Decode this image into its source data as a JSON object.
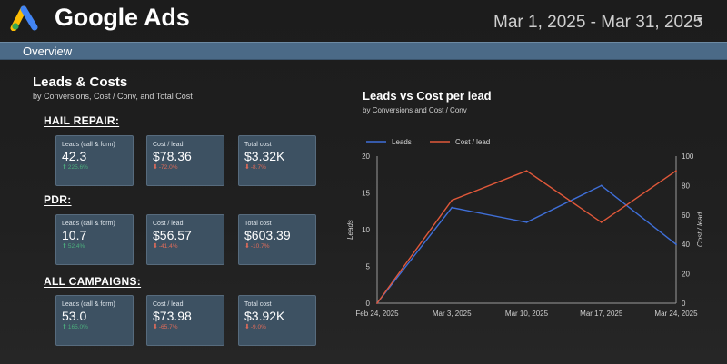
{
  "header": {
    "brand": "Google Ads",
    "date_range": "Mar 1, 2025 - Mar 31, 2025"
  },
  "nav": {
    "overview": "Overview"
  },
  "leads_costs": {
    "title": "Leads & Costs",
    "subtitle": "by Conversions, Cost / Conv, and Total Cost",
    "groups": [
      {
        "name": "HAIL REPAIR:",
        "metrics": [
          {
            "label": "Leads (call & form)",
            "value": "42.3",
            "change": "225.6%",
            "direction": "up"
          },
          {
            "label": "Cost / lead",
            "value": "$78.36",
            "change": "-72.0%",
            "direction": "down"
          },
          {
            "label": "Total cost",
            "value": "$3.32K",
            "change": "-8.7%",
            "direction": "down"
          }
        ]
      },
      {
        "name": "PDR:",
        "metrics": [
          {
            "label": "Leads (call & form)",
            "value": "10.7",
            "change": "52.4%",
            "direction": "up"
          },
          {
            "label": "Cost / lead",
            "value": "$56.57",
            "change": "-41.4%",
            "direction": "down"
          },
          {
            "label": "Total cost",
            "value": "$603.39",
            "change": "-10.7%",
            "direction": "down"
          }
        ]
      },
      {
        "name": "ALL CAMPAIGNS:",
        "metrics": [
          {
            "label": "Leads (call & form)",
            "value": "53.0",
            "change": "165.0%",
            "direction": "up"
          },
          {
            "label": "Cost / lead",
            "value": "$73.98",
            "change": "-65.7%",
            "direction": "down"
          },
          {
            "label": "Total cost",
            "value": "$3.92K",
            "change": "-9.0%",
            "direction": "down"
          }
        ]
      }
    ]
  },
  "colors": {
    "up": "#4caf7d",
    "down": "#e06c5a",
    "leads": "#3f6fd8",
    "cost": "#e0583a",
    "axis": "#9a9a9a"
  },
  "chart_data": {
    "type": "line",
    "title": "Leads vs Cost per lead",
    "subtitle": "by Conversions and Cost / Conv",
    "categories": [
      "Feb 24, 2025",
      "Mar 3, 2025",
      "Mar 10, 2025",
      "Mar 17, 2025",
      "Mar 24, 2025"
    ],
    "series": [
      {
        "name": "Leads",
        "axis": "left",
        "values": [
          0,
          13,
          11,
          16,
          8
        ]
      },
      {
        "name": "Cost / lead",
        "axis": "right",
        "values": [
          0,
          70,
          90,
          55,
          90
        ]
      }
    ],
    "ylabel": "Leads",
    "y2label": "Cost / lead",
    "ylim": [
      0,
      20
    ],
    "y2lim": [
      0,
      100
    ],
    "yticks": [
      0,
      5,
      10,
      15,
      20
    ],
    "y2ticks": [
      0,
      20,
      40,
      60,
      80,
      100
    ],
    "legend": "top-left",
    "grid": false
  }
}
